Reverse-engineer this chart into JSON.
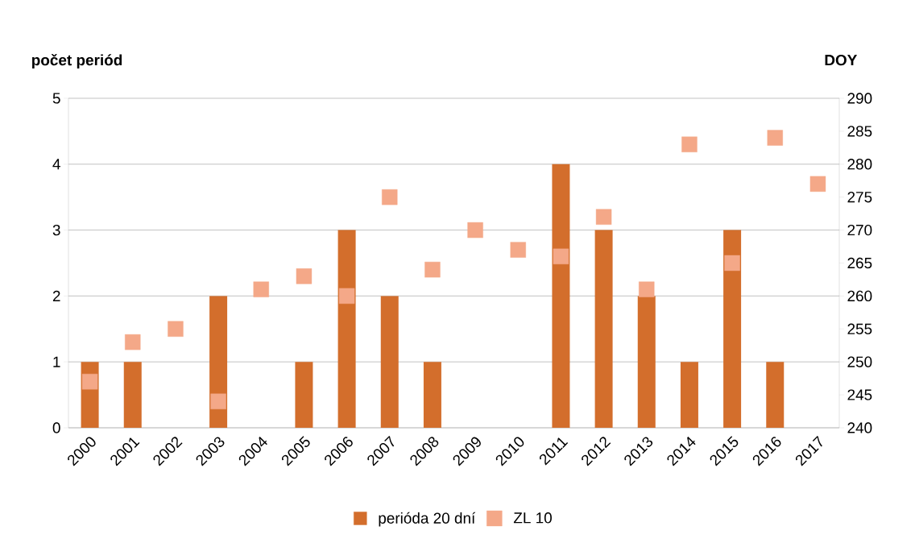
{
  "chart_data": {
    "type": "bar",
    "ylabel": "počet periód",
    "y2label": "DOY",
    "categories": [
      "2000",
      "2001",
      "2002",
      "2003",
      "2004",
      "2005",
      "2006",
      "2007",
      "2008",
      "2009",
      "2010",
      "2011",
      "2012",
      "2013",
      "2014",
      "2015",
      "2016",
      "2017"
    ],
    "series": [
      {
        "name": "perióda 20 dní",
        "color": "#d36e2c",
        "values": [
          1,
          1,
          0,
          2,
          0,
          1,
          3,
          2,
          1,
          0,
          0,
          4,
          3,
          2,
          1,
          3,
          1,
          0
        ]
      },
      {
        "name": "ZL 10",
        "type": "scatter",
        "axis": "y2",
        "marker": "square",
        "color": "#f4a888",
        "values": [
          247,
          253,
          255,
          244,
          261,
          263,
          260,
          275,
          264,
          270,
          267,
          266,
          272,
          261,
          283,
          265,
          284,
          277
        ]
      }
    ],
    "ylim": [
      0,
      5
    ],
    "yticks": [
      0,
      1,
      2,
      3,
      4,
      5
    ],
    "y2lim": [
      240,
      290
    ],
    "y2ticks": [
      240,
      245,
      250,
      255,
      260,
      265,
      270,
      275,
      280,
      285,
      290
    ],
    "grid": "y",
    "legend": "bottom"
  }
}
